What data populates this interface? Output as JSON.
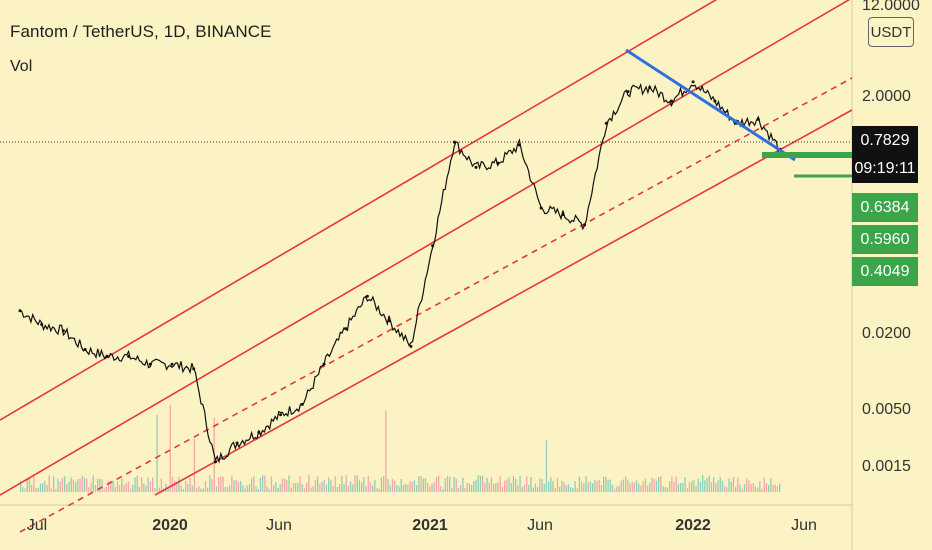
{
  "header": {
    "title": "Fantom / TetherUS, 1D, BINANCE",
    "subtitle": "Vol",
    "currency": "USDT"
  },
  "price_axis": {
    "ticks": [
      "12.0000",
      "2.0000",
      "0.0200",
      "0.0050",
      "0.0015"
    ],
    "current_price": "0.7829",
    "countdown": "09:19:11",
    "levels": [
      "0.6384",
      "0.5960",
      "0.4049"
    ]
  },
  "time_axis": {
    "labels": [
      {
        "text": "Jul",
        "bold": false
      },
      {
        "text": "2020",
        "bold": true
      },
      {
        "text": "Jun",
        "bold": false
      },
      {
        "text": "2021",
        "bold": true
      },
      {
        "text": "Jun",
        "bold": false
      },
      {
        "text": "2022",
        "bold": true
      },
      {
        "text": "Jun",
        "bold": false
      }
    ]
  },
  "colors": {
    "background": "#fbf3c3",
    "channel": "#e8363a",
    "trendline": "#2f6fe0",
    "support": "#3ba54a",
    "candles": "#111111",
    "volume_up": "#8fcfb6",
    "volume_down": "#f0a8a8"
  },
  "chart_data": {
    "type": "line",
    "symbol": "Fantom / TetherUS",
    "interval": "1D",
    "exchange": "BINANCE",
    "scale": "log",
    "series": [
      {
        "name": "Fantom / TetherUS",
        "x": [
          "2019-06",
          "2019-07",
          "2019-08",
          "2019-09",
          "2019-10",
          "2019-11",
          "2019-12",
          "2020-01",
          "2020-02",
          "2020-03",
          "2020-04",
          "2020-05",
          "2020-06",
          "2020-07",
          "2020-08",
          "2020-09",
          "2020-10",
          "2020-11",
          "2020-12",
          "2021-01",
          "2021-02",
          "2021-03",
          "2021-04",
          "2021-05",
          "2021-06",
          "2021-07",
          "2021-08",
          "2021-09",
          "2021-10",
          "2021-11",
          "2021-12",
          "2022-01",
          "2022-02",
          "2022-03",
          "2022-04",
          "2022-05"
        ],
        "values": [
          0.034,
          0.026,
          0.023,
          0.016,
          0.014,
          0.014,
          0.012,
          0.012,
          0.011,
          0.0018,
          0.0026,
          0.0032,
          0.0045,
          0.0055,
          0.012,
          0.024,
          0.045,
          0.028,
          0.017,
          0.12,
          0.9,
          0.55,
          0.6,
          0.85,
          0.25,
          0.22,
          0.18,
          1.3,
          2.4,
          2.6,
          2.0,
          2.9,
          2.0,
          1.3,
          1.4,
          0.7829
        ]
      }
    ],
    "current_price": 0.7829,
    "support_levels": [
      0.6384,
      0.596,
      0.4049
    ]
  }
}
